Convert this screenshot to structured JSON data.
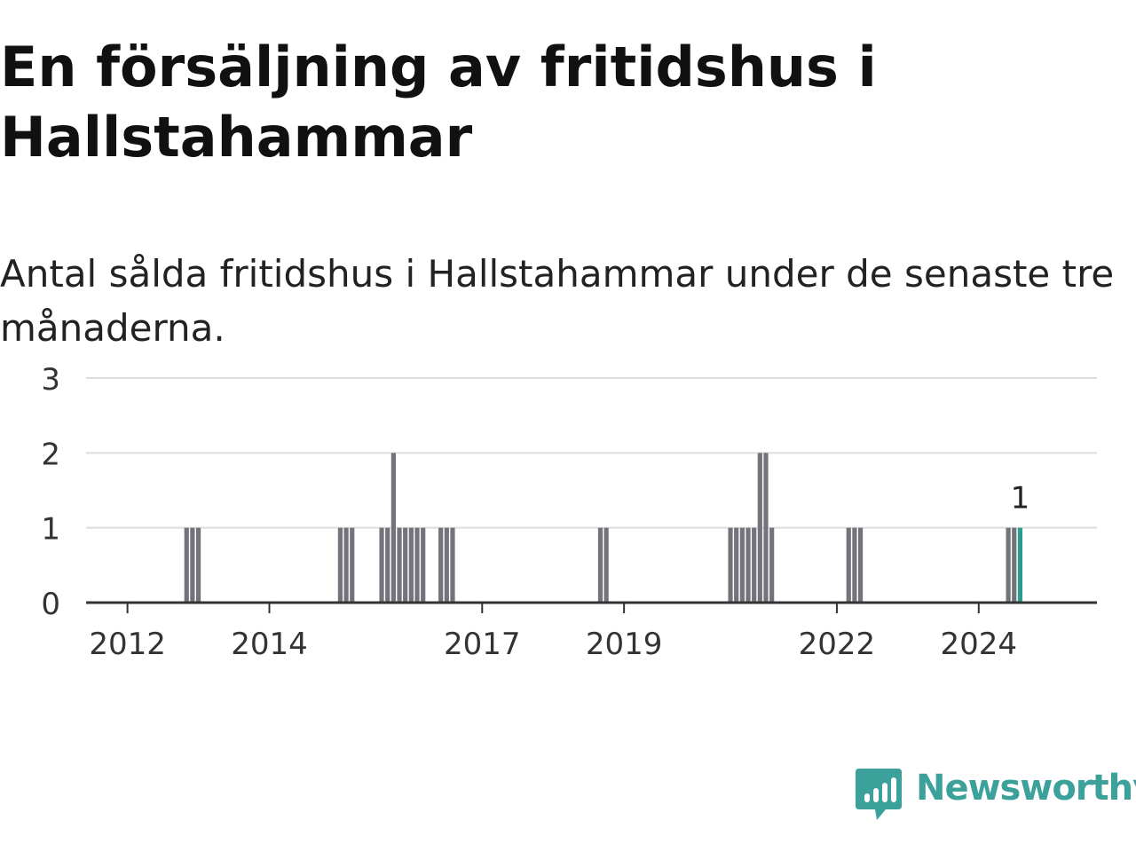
{
  "header": {
    "title": "En försäljning av fritidshus i Hallstahammar",
    "subtitle": "Antal sålda fritidshus i Hallstahammar under de senaste tre månaderna."
  },
  "brand": {
    "name": "Newsworthy",
    "icon": "newsworthy-logo-icon",
    "color": "#3ca09b"
  },
  "chart_data": {
    "type": "bar",
    "title": "",
    "xlabel": "",
    "ylabel": "",
    "ylim": [
      0,
      3
    ],
    "yticks": [
      "0",
      "1",
      "2",
      "3"
    ],
    "xticks": [
      {
        "label": "2012",
        "x": "2012-01"
      },
      {
        "label": "2014",
        "x": "2014-01"
      },
      {
        "label": "2017",
        "x": "2017-01"
      },
      {
        "label": "2019",
        "x": "2019-01"
      },
      {
        "label": "2022",
        "x": "2022-01"
      },
      {
        "label": "2024",
        "x": "2024-01"
      }
    ],
    "x_range": [
      "2011-06",
      "2025-09"
    ],
    "grid": true,
    "bar_color": "#73737b",
    "highlight_color": "#2a9d8f",
    "categories": [
      "2012-11",
      "2012-12",
      "2013-01",
      "2015-01",
      "2015-02",
      "2015-03",
      "2015-08",
      "2015-09",
      "2015-10",
      "2015-11",
      "2015-12",
      "2016-01",
      "2016-02",
      "2016-03",
      "2016-06",
      "2016-07",
      "2016-08",
      "2018-09",
      "2018-10",
      "2020-07",
      "2020-08",
      "2020-09",
      "2020-10",
      "2020-11",
      "2020-12",
      "2021-01",
      "2021-02",
      "2022-03",
      "2022-04",
      "2022-05",
      "2024-06",
      "2024-07",
      "2024-08"
    ],
    "values": [
      1,
      1,
      1,
      1,
      1,
      1,
      1,
      1,
      2,
      1,
      1,
      1,
      1,
      1,
      1,
      1,
      1,
      1,
      1,
      1,
      1,
      1,
      1,
      1,
      2,
      2,
      1,
      1,
      1,
      1,
      1,
      1,
      1
    ],
    "highlight_last": true,
    "annotation": {
      "x": "2024-08",
      "label": "1"
    }
  }
}
